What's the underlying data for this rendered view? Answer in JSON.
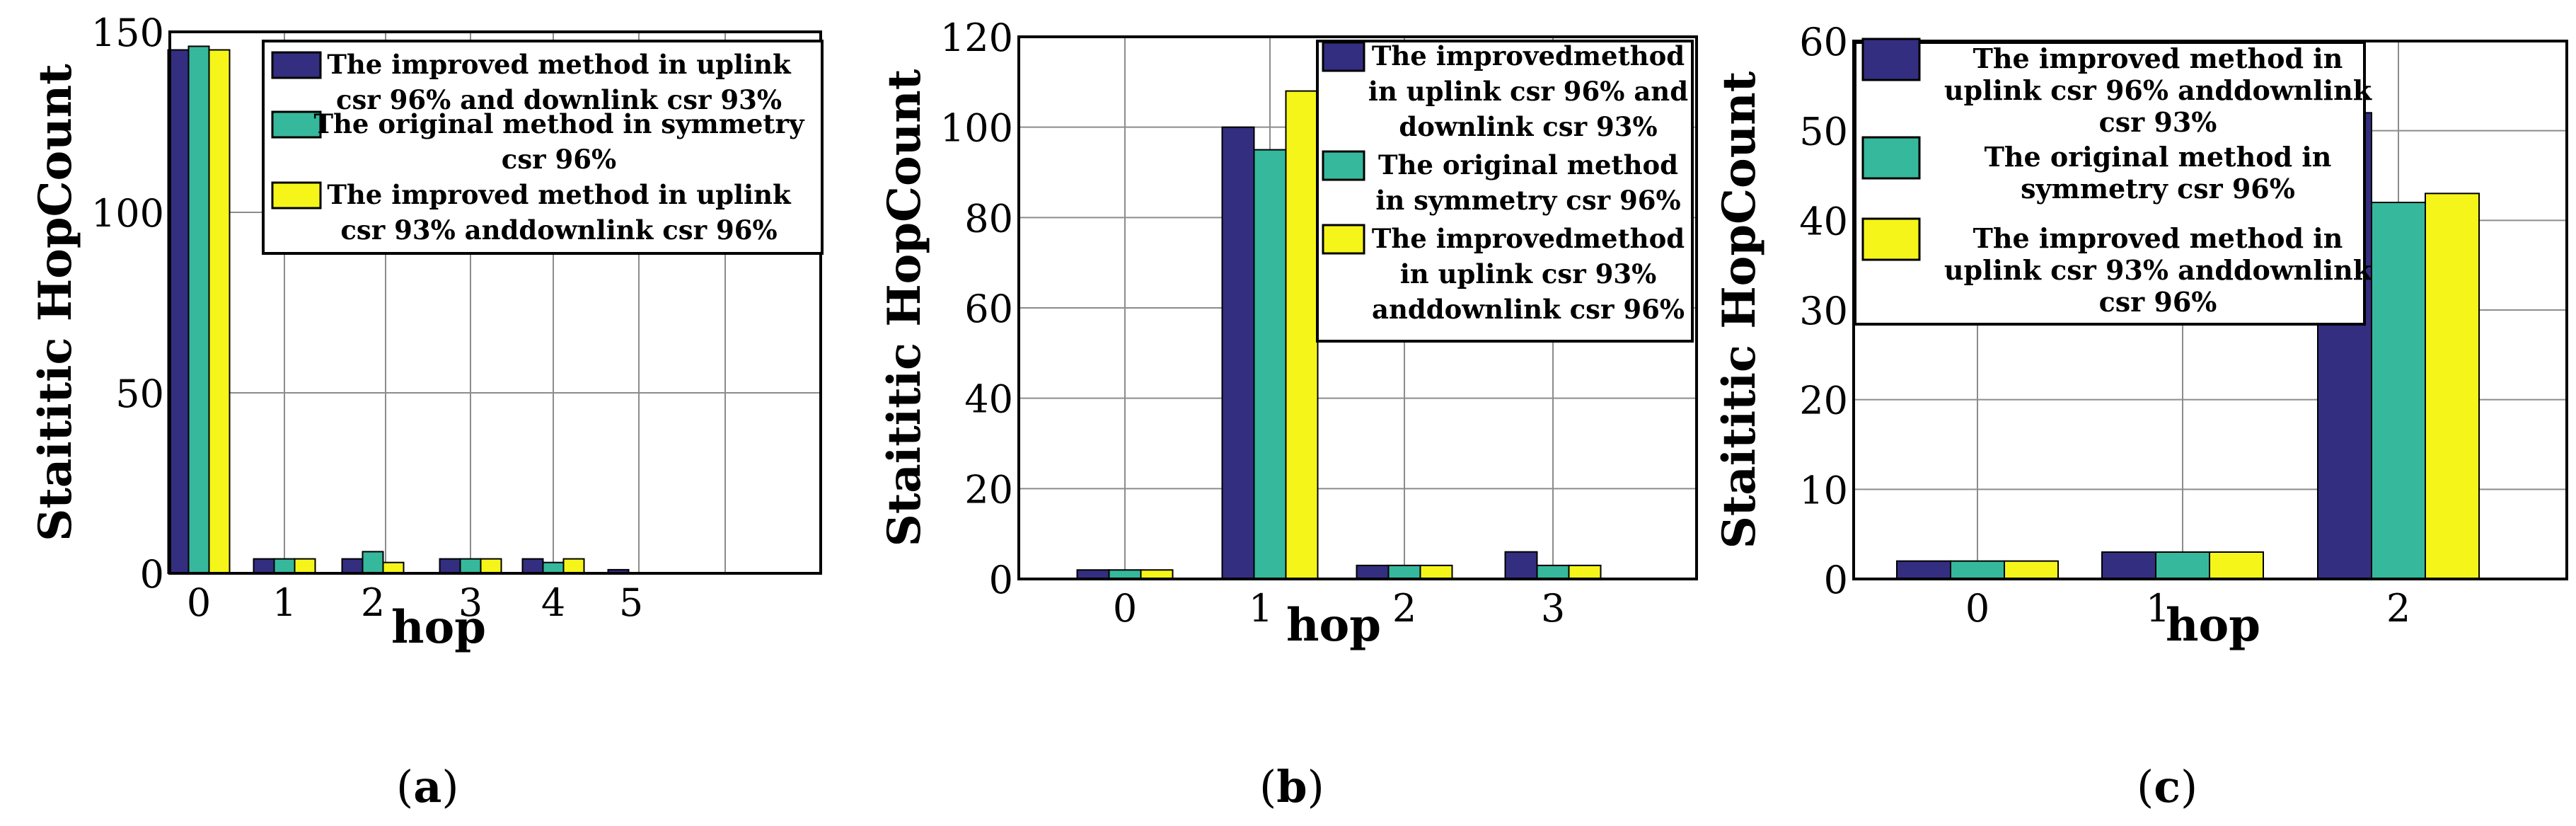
{
  "colors": {
    "series1": "#342e80",
    "series2": "#36b89c",
    "series3": "#f6f51a",
    "grid": "#8c8c8c",
    "axis": "#000000"
  },
  "chart_data": [
    {
      "panel_label": "a",
      "type": "bar",
      "xlabel": "hop",
      "ylabel": "Staititic HopCount",
      "categories": [
        "0",
        "1",
        "2",
        "3",
        "4",
        "5"
      ],
      "ylim": [
        0,
        150
      ],
      "yticks": [
        0,
        50,
        100,
        150
      ],
      "grid": true,
      "legend_position": "top-right",
      "series": [
        {
          "name": "The improved method in uplink csr 96% and downlink csr 93%",
          "values": [
            145,
            4,
            4,
            4,
            4,
            1
          ]
        },
        {
          "name": "The original method in symmetry csr 96%",
          "values": [
            146,
            4,
            6,
            4,
            3,
            0
          ]
        },
        {
          "name": "The improved method in uplink csr 93% anddownlink csr 96%",
          "values": [
            145,
            4,
            3,
            4,
            4,
            0
          ]
        }
      ],
      "legend_lines": [
        [
          "The improved method in uplink",
          "csr 96% and downlink csr 93%"
        ],
        [
          "The original method in symmetry",
          "csr 96%"
        ],
        [
          "The improved method in uplink",
          "csr 93% anddownlink csr 96%"
        ]
      ]
    },
    {
      "panel_label": "b",
      "type": "bar",
      "xlabel": "hop",
      "ylabel": "Staititic HopCount",
      "categories": [
        "0",
        "1",
        "2",
        "3"
      ],
      "ylim": [
        0,
        120
      ],
      "yticks": [
        0,
        20,
        40,
        60,
        80,
        100,
        120
      ],
      "grid": true,
      "legend_position": "top-right",
      "series": [
        {
          "name": "The improvedmethod in uplink csr 96% and downlink csr 93%",
          "values": [
            2,
            100,
            3,
            6
          ]
        },
        {
          "name": "The original method in symmetry csr 96%",
          "values": [
            2,
            95,
            3,
            3
          ]
        },
        {
          "name": "The improvedmethod in uplink csr 93% anddownlink csr 96%",
          "values": [
            2,
            108,
            3,
            3
          ]
        }
      ],
      "legend_lines": [
        [
          "The improvedmethod",
          "in uplink csr 96% and",
          "downlink csr 93%"
        ],
        [
          "The original method",
          "in symmetry csr 96%"
        ],
        [
          "The improvedmethod",
          "in uplink csr 93%",
          "anddownlink csr 96%"
        ]
      ]
    },
    {
      "panel_label": "c",
      "type": "bar",
      "xlabel": "hop",
      "ylabel": "Staititic HopCount",
      "categories": [
        "0",
        "1",
        "2"
      ],
      "ylim": [
        0,
        60
      ],
      "yticks": [
        0,
        10,
        20,
        30,
        40,
        50,
        60
      ],
      "grid": true,
      "legend_position": "top-left",
      "series": [
        {
          "name": "The improved method in uplink csr 96% anddownlink csr 93%",
          "values": [
            2,
            3,
            52
          ]
        },
        {
          "name": "The original method in symmetry csr 96%",
          "values": [
            2,
            3,
            42
          ]
        },
        {
          "name": "The improved method in uplink csr 93% anddownlink csr 96%",
          "values": [
            2,
            3,
            43
          ]
        }
      ],
      "legend_lines": [
        [
          "The improved method in",
          "uplink csr 96% anddownlink",
          "csr 93%"
        ],
        [
          "The original method in",
          "symmetry csr 96%"
        ],
        [
          "The improved method in",
          "uplink csr 93% anddownlink",
          "csr 96%"
        ]
      ]
    }
  ]
}
